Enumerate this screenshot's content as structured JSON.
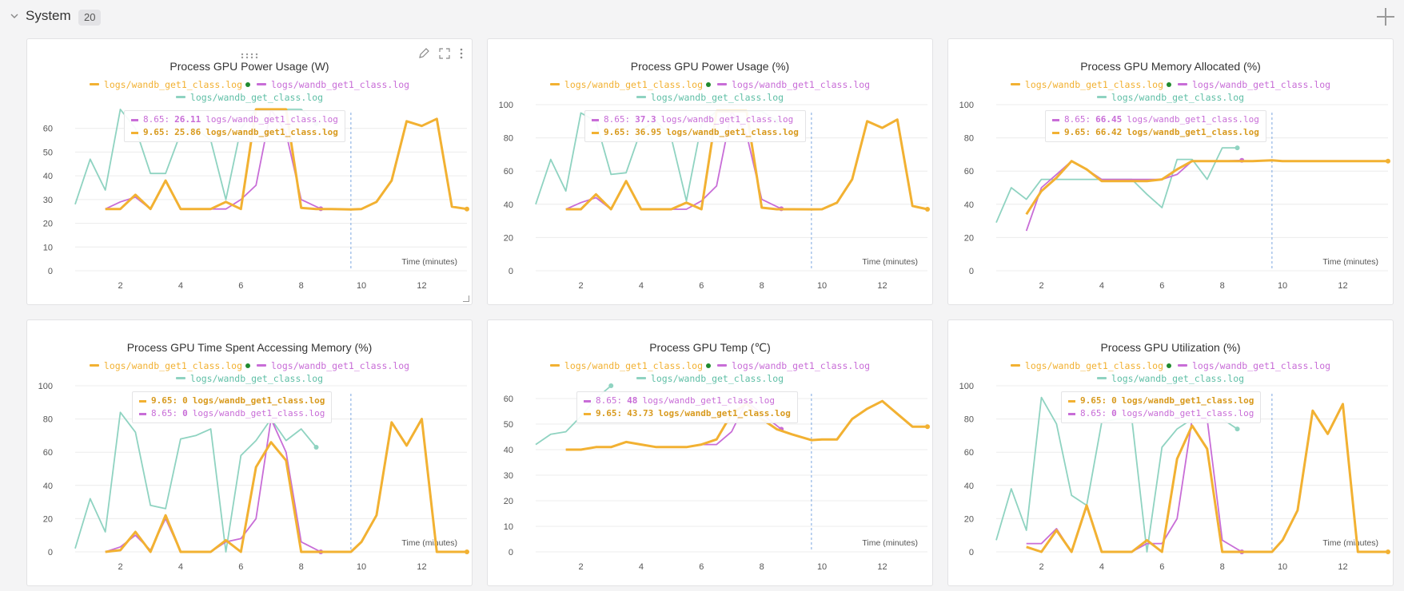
{
  "section": {
    "collapse_icon": "chevron-down-icon",
    "title": "System",
    "count": "20",
    "add_icon": "plus-icon"
  },
  "colors": {
    "orange": "#f2b132",
    "purple": "#c86dd7",
    "teal": "#8fd3c1",
    "marker": "#1f8a2e"
  },
  "legend": {
    "run1": "logs/wandb_get1_class.log",
    "run2": "logs/wandb_get1_class.log",
    "run3": "logs/wandb_get_class.log"
  },
  "panels": [
    {
      "title": "Process GPU Power Usage (W)",
      "xlabel": "Time (minutes)",
      "tooltip": [
        {
          "color": "purple",
          "x": "8.65:",
          "value": "26.11",
          "run": "logs/wandb_get1_class.log"
        },
        {
          "color": "orange",
          "x": "9.65:",
          "value": "25.86",
          "run": "logs/wandb_get1_class.log"
        }
      ]
    },
    {
      "title": "Process GPU Power Usage (%)",
      "xlabel": "Time (minutes)",
      "tooltip": [
        {
          "color": "purple",
          "x": "8.65:",
          "value": "37.3",
          "run": "logs/wandb_get1_class.log"
        },
        {
          "color": "orange",
          "x": "9.65:",
          "value": "36.95",
          "run": "logs/wandb_get1_class.log"
        }
      ]
    },
    {
      "title": "Process GPU Memory Allocated (%)",
      "xlabel": "Time (minutes)",
      "tooltip": [
        {
          "color": "purple",
          "x": "8.65:",
          "value": "66.45",
          "run": "logs/wandb_get1_class.log"
        },
        {
          "color": "orange",
          "x": "9.65:",
          "value": "66.42",
          "run": "logs/wandb_get1_class.log"
        }
      ]
    },
    {
      "title": "Process GPU Time Spent Accessing Memory (%)",
      "xlabel": "Time (minutes)",
      "tooltip": [
        {
          "color": "orange",
          "x": "9.65:",
          "value": "0",
          "run": "logs/wandb_get1_class.log"
        },
        {
          "color": "purple",
          "x": "8.65:",
          "value": "0",
          "run": "logs/wandb_get1_class.log"
        }
      ]
    },
    {
      "title": "Process GPU Temp (℃)",
      "xlabel": "Time (minutes)",
      "tooltip": [
        {
          "color": "purple",
          "x": "8.65:",
          "value": "48",
          "run": "logs/wandb_get1_class.log"
        },
        {
          "color": "orange",
          "x": "9.65:",
          "value": "43.73",
          "run": "logs/wandb_get1_class.log"
        }
      ]
    },
    {
      "title": "Process GPU Utilization (%)",
      "xlabel": "Time (minutes)",
      "tooltip": [
        {
          "color": "orange",
          "x": "9.65:",
          "value": "0",
          "run": "logs/wandb_get1_class.log"
        },
        {
          "color": "purple",
          "x": "8.65:",
          "value": "0",
          "run": "logs/wandb_get1_class.log"
        }
      ]
    }
  ],
  "chart_data": [
    {
      "type": "line",
      "title": "Process GPU Power Usage (W)",
      "xlabel": "Time (minutes)",
      "xlim": [
        0.5,
        13.5
      ],
      "xticks": [
        2,
        4,
        6,
        8,
        10,
        12
      ],
      "ylim": [
        0,
        70
      ],
      "yticks": [
        0,
        10,
        20,
        30,
        40,
        50,
        60
      ],
      "hover_x": 9.65,
      "series": [
        {
          "name": "logs/wandb_get_class.log",
          "color": "teal",
          "x": [
            0.5,
            1,
            1.5,
            2,
            2.5,
            3,
            3.5,
            4,
            4.5,
            5,
            5.5,
            6,
            6.5,
            7,
            7.5,
            8,
            8.5
          ],
          "y": [
            28,
            47,
            34,
            68,
            60,
            41,
            41,
            58,
            60,
            55,
            30,
            60,
            68,
            68,
            68,
            68,
            62
          ]
        },
        {
          "name": "logs/wandb_get1_class.log",
          "color": "purple",
          "x": [
            1.5,
            2,
            2.5,
            3,
            3.5,
            4,
            4.5,
            5,
            5.5,
            6,
            6.5,
            7,
            7.5,
            8,
            8.65
          ],
          "y": [
            26,
            29,
            31,
            26,
            38,
            26,
            26,
            26,
            26,
            30,
            36,
            68,
            58,
            30,
            26.11
          ]
        },
        {
          "name": "logs/wandb_get1_class.log",
          "color": "orange",
          "x": [
            1.5,
            2,
            2.5,
            3,
            3.5,
            4,
            4.5,
            5,
            5.5,
            6,
            6.5,
            7,
            7.5,
            8,
            8.5,
            9,
            9.65,
            10,
            10.5,
            11,
            11.5,
            12,
            12.5,
            13,
            13.5
          ],
          "y": [
            26,
            26,
            32,
            26,
            38,
            26,
            26,
            26,
            29,
            26,
            68,
            68,
            68,
            26.5,
            26,
            26,
            25.86,
            26,
            29,
            38,
            63,
            61,
            64,
            27,
            26
          ]
        }
      ]
    },
    {
      "type": "line",
      "title": "Process GPU Power Usage (%)",
      "xlabel": "Time (minutes)",
      "xlim": [
        0.5,
        13.5
      ],
      "xticks": [
        2,
        4,
        6,
        8,
        10,
        12
      ],
      "ylim": [
        0,
        100
      ],
      "yticks": [
        0,
        20,
        40,
        60,
        80,
        100
      ],
      "hover_x": 9.65,
      "series": [
        {
          "name": "logs/wandb_get_class.log",
          "color": "teal",
          "x": [
            0.5,
            1,
            1.5,
            2,
            2.5,
            3,
            3.5,
            4,
            4.5,
            5,
            5.5,
            6,
            6.5,
            7,
            7.5,
            8,
            8.5
          ],
          "y": [
            40,
            67,
            48,
            95,
            90,
            58,
            59,
            85,
            90,
            80,
            42,
            88,
            96,
            96,
            96,
            96,
            90
          ]
        },
        {
          "name": "logs/wandb_get1_class.log",
          "color": "purple",
          "x": [
            1.5,
            2,
            2.5,
            3,
            3.5,
            4,
            4.5,
            5,
            5.5,
            6,
            6.5,
            7,
            7.5,
            8,
            8.65
          ],
          "y": [
            37,
            41,
            44,
            37,
            54,
            37,
            37,
            37,
            37,
            42,
            51,
            96,
            82,
            43,
            37.3
          ]
        },
        {
          "name": "logs/wandb_get1_class.log",
          "color": "orange",
          "x": [
            1.5,
            2,
            2.5,
            3,
            3.5,
            4,
            4.5,
            5,
            5.5,
            6,
            6.5,
            7,
            7.5,
            8,
            8.5,
            9,
            9.65,
            10,
            10.5,
            11,
            11.5,
            12,
            12.5,
            13,
            13.5
          ],
          "y": [
            37,
            37,
            46,
            37,
            54,
            37,
            37,
            37,
            41,
            37,
            96,
            96,
            96,
            38,
            37,
            37,
            36.95,
            37,
            41,
            55,
            90,
            86,
            91,
            39,
            37
          ]
        }
      ]
    },
    {
      "type": "line",
      "title": "Process GPU Memory Allocated (%)",
      "xlabel": "Time (minutes)",
      "xlim": [
        0.5,
        13.5
      ],
      "xticks": [
        2,
        4,
        6,
        8,
        10,
        12
      ],
      "ylim": [
        0,
        100
      ],
      "yticks": [
        0,
        20,
        40,
        60,
        80,
        100
      ],
      "hover_x": 9.65,
      "series": [
        {
          "name": "logs/wandb_get_class.log",
          "color": "teal",
          "x": [
            0.5,
            1,
            1.5,
            2,
            2.5,
            3,
            3.5,
            4,
            4.5,
            5,
            5.5,
            6,
            6.5,
            7,
            7.5,
            8,
            8.5
          ],
          "y": [
            29,
            50,
            43,
            55,
            55,
            55,
            55,
            55,
            55,
            55,
            46,
            38,
            67,
            67,
            55,
            74,
            74
          ]
        },
        {
          "name": "logs/wandb_get1_class.log",
          "color": "purple",
          "x": [
            1.5,
            2,
            2.5,
            3,
            3.5,
            4,
            4.5,
            5,
            5.5,
            6,
            6.5,
            7,
            7.5,
            8,
            8.65
          ],
          "y": [
            24,
            50,
            58,
            66,
            61,
            55,
            55,
            55,
            55,
            55,
            58,
            66,
            66,
            66,
            66.45
          ]
        },
        {
          "name": "logs/wandb_get1_class.log",
          "color": "orange",
          "x": [
            1.5,
            2,
            2.5,
            3,
            3.5,
            4,
            4.5,
            5,
            5.5,
            6,
            6.5,
            7,
            7.5,
            8,
            8.5,
            9,
            9.65,
            10,
            10.5,
            11,
            11.5,
            12,
            12.5,
            13,
            13.5
          ],
          "y": [
            34,
            48,
            56,
            66,
            61,
            54,
            54,
            54,
            54,
            55,
            61,
            66,
            66,
            66,
            66,
            66,
            66.42,
            66,
            66,
            66,
            66,
            66,
            66,
            66,
            66
          ]
        }
      ]
    },
    {
      "type": "line",
      "title": "Process GPU Time Spent Accessing Memory (%)",
      "xlabel": "Time (minutes)",
      "xlim": [
        0.5,
        13.5
      ],
      "xticks": [
        2,
        4,
        6,
        8,
        10,
        12
      ],
      "ylim": [
        0,
        100
      ],
      "yticks": [
        0,
        20,
        40,
        60,
        80,
        100
      ],
      "hover_x": 9.65,
      "series": [
        {
          "name": "logs/wandb_get_class.log",
          "color": "teal",
          "x": [
            0.5,
            1,
            1.5,
            2,
            2.5,
            3,
            3.5,
            4,
            4.5,
            5,
            5.5,
            6,
            6.5,
            7,
            7.5,
            8,
            8.5
          ],
          "y": [
            2,
            32,
            12,
            84,
            72,
            28,
            26,
            68,
            70,
            74,
            0,
            58,
            67,
            80,
            67,
            74,
            63
          ]
        },
        {
          "name": "logs/wandb_get1_class.log",
          "color": "purple",
          "x": [
            1.5,
            2,
            2.5,
            3,
            3.5,
            4,
            4.5,
            5,
            5.5,
            6,
            6.5,
            7,
            7.5,
            8,
            8.65
          ],
          "y": [
            0,
            3,
            10,
            1,
            20,
            0,
            0,
            0,
            6,
            8,
            20,
            80,
            60,
            6,
            0
          ]
        },
        {
          "name": "logs/wandb_get1_class.log",
          "color": "orange",
          "x": [
            1.5,
            2,
            2.5,
            3,
            3.5,
            4,
            4.5,
            5,
            5.5,
            6,
            6.5,
            7,
            7.5,
            8,
            8.5,
            9,
            9.65,
            10,
            10.5,
            11,
            11.5,
            12,
            12.5,
            13,
            13.5
          ],
          "y": [
            0,
            1,
            12,
            0,
            22,
            0,
            0,
            0,
            7,
            0,
            51,
            66,
            55,
            0,
            0,
            0,
            0,
            6,
            22,
            78,
            64,
            80,
            0,
            0,
            0
          ]
        }
      ]
    },
    {
      "type": "line",
      "title": "Process GPU Temp (℃)",
      "xlabel": "Time (minutes)",
      "xlim": [
        0.5,
        13.5
      ],
      "xticks": [
        2,
        4,
        6,
        8,
        10,
        12
      ],
      "ylim": [
        0,
        65
      ],
      "yticks": [
        0,
        10,
        20,
        30,
        40,
        50,
        60
      ],
      "hover_x": 9.65,
      "series": [
        {
          "name": "logs/wandb_get_class.log",
          "color": "teal",
          "x": [
            0.5,
            1,
            1.5,
            2,
            2.5,
            3
          ],
          "y": [
            42,
            46,
            47,
            53,
            60,
            65
          ]
        },
        {
          "name": "logs/wandb_get1_class.log",
          "color": "purple",
          "x": [
            1.5,
            2,
            2.5,
            3,
            3.5,
            4,
            4.5,
            5,
            5.5,
            6,
            6.5,
            7,
            7.5,
            8,
            8.65
          ],
          "y": [
            40,
            40,
            41,
            41,
            43,
            42,
            41,
            41,
            41,
            42,
            42,
            47,
            59,
            54,
            48
          ]
        },
        {
          "name": "logs/wandb_get1_class.log",
          "color": "orange",
          "x": [
            1.5,
            2,
            2.5,
            3,
            3.5,
            4,
            4.5,
            5,
            5.5,
            6,
            6.5,
            7,
            7.5,
            8,
            8.5,
            9,
            9.65,
            10,
            10.5,
            11,
            11.5,
            12,
            12.5,
            13,
            13.5
          ],
          "y": [
            40,
            40,
            41,
            41,
            43,
            42,
            41,
            41,
            41,
            42,
            44,
            54,
            58,
            52,
            48,
            46,
            43.73,
            44,
            44,
            52,
            56,
            59,
            54,
            49,
            49
          ]
        }
      ]
    },
    {
      "type": "line",
      "title": "Process GPU Utilization (%)",
      "xlabel": "Time (minutes)",
      "xlim": [
        0.5,
        13.5
      ],
      "xticks": [
        2,
        4,
        6,
        8,
        10,
        12
      ],
      "ylim": [
        0,
        100
      ],
      "yticks": [
        0,
        20,
        40,
        60,
        80,
        100
      ],
      "hover_x": 9.65,
      "series": [
        {
          "name": "logs/wandb_get_class.log",
          "color": "teal",
          "x": [
            0.5,
            1,
            1.5,
            2,
            2.5,
            3,
            3.5,
            4,
            4.5,
            5,
            5.5,
            6,
            6.5,
            7,
            7.5,
            8,
            8.5
          ],
          "y": [
            7,
            38,
            13,
            93,
            77,
            34,
            28,
            78,
            80,
            80,
            0,
            63,
            74,
            80,
            80,
            80,
            74
          ]
        },
        {
          "name": "logs/wandb_get1_class.log",
          "color": "purple",
          "x": [
            1.5,
            2,
            2.5,
            3,
            3.5,
            4,
            4.5,
            5,
            5.5,
            6,
            6.5,
            7,
            7.5,
            8,
            8.65
          ],
          "y": [
            5,
            5,
            14,
            0,
            27,
            0,
            0,
            0,
            5,
            5,
            20,
            80,
            80,
            7,
            0
          ]
        },
        {
          "name": "logs/wandb_get1_class.log",
          "color": "orange",
          "x": [
            1.5,
            2,
            2.5,
            3,
            3.5,
            4,
            4.5,
            5,
            5.5,
            6,
            6.5,
            7,
            7.5,
            8,
            8.5,
            9,
            9.65,
            10,
            10.5,
            11,
            11.5,
            12,
            12.5,
            13,
            13.5
          ],
          "y": [
            3,
            0,
            13,
            0,
            28,
            0,
            0,
            0,
            7,
            0,
            56,
            76,
            62,
            0,
            0,
            0,
            0,
            7,
            25,
            85,
            71,
            89,
            0,
            0,
            0
          ]
        }
      ]
    }
  ]
}
